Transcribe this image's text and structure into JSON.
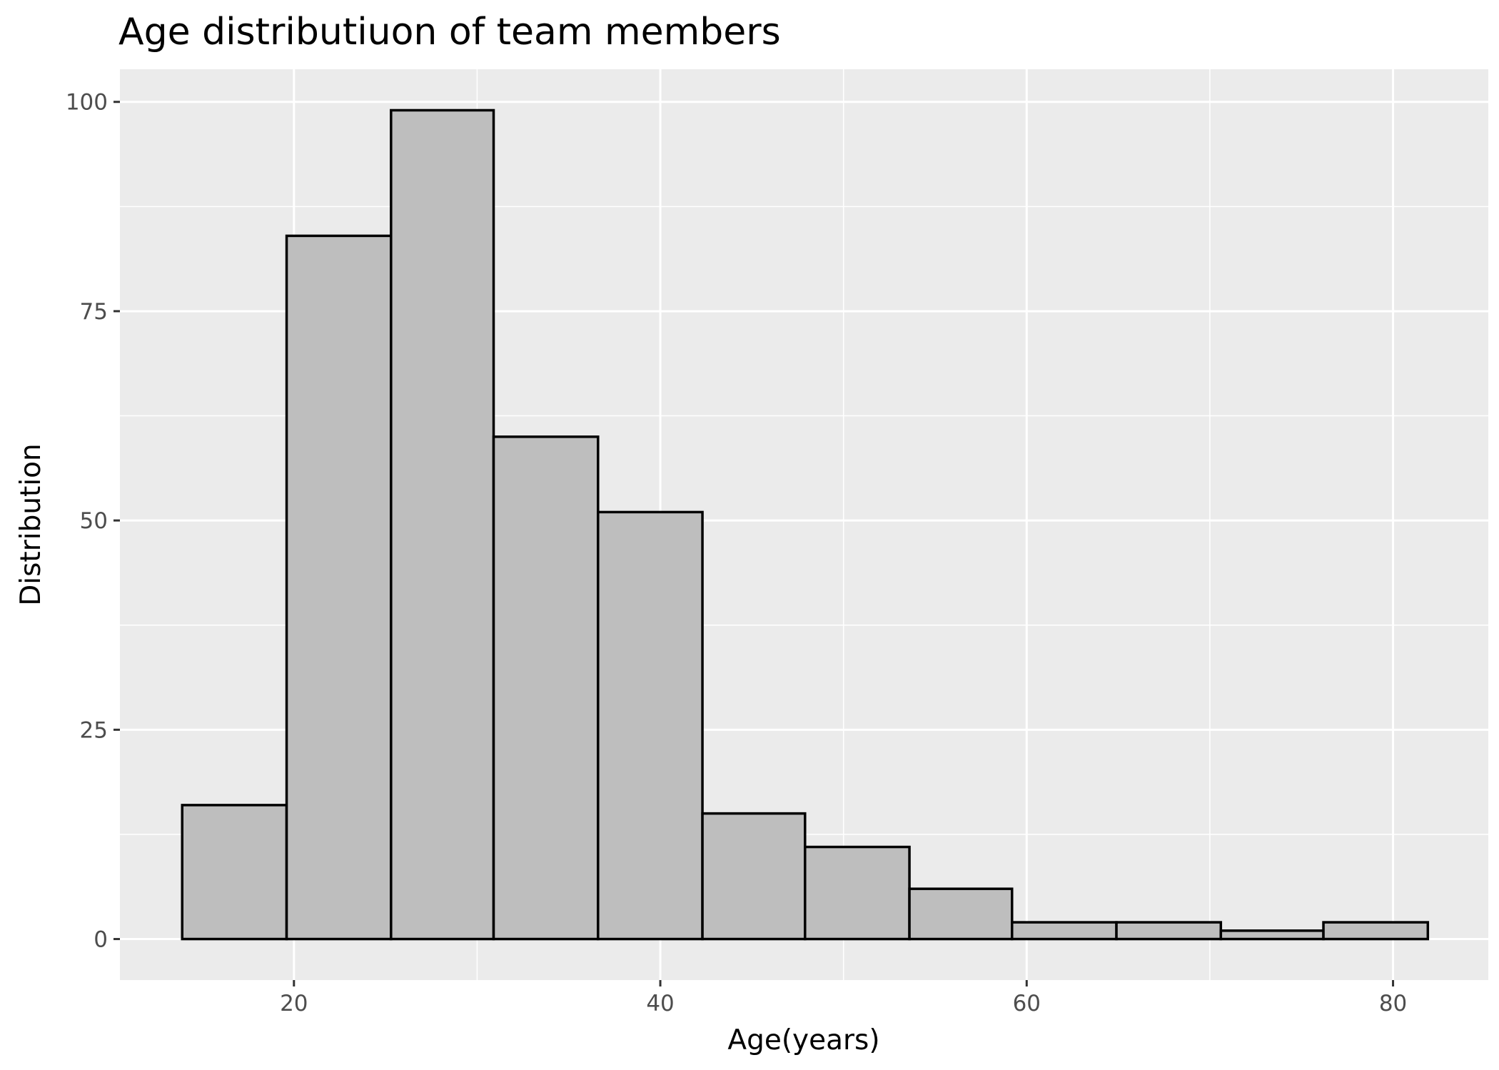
{
  "chart_data": {
    "type": "bar",
    "title": "Age distributiuon of team members",
    "xlabel": "Age(years)",
    "ylabel": "Distribution",
    "xlim": [
      10.5,
      85.2
    ],
    "ylim": [
      -4.9,
      103.9
    ],
    "x_ticks": [
      20,
      40,
      60,
      80
    ],
    "y_ticks": [
      0,
      25,
      50,
      75,
      100
    ],
    "bins": [
      {
        "start": 13.9,
        "end": 19.6,
        "count": 16
      },
      {
        "start": 19.6,
        "end": 25.3,
        "count": 84
      },
      {
        "start": 25.3,
        "end": 30.9,
        "count": 99
      },
      {
        "start": 30.9,
        "end": 36.6,
        "count": 60
      },
      {
        "start": 36.6,
        "end": 42.3,
        "count": 51
      },
      {
        "start": 42.3,
        "end": 47.9,
        "count": 15
      },
      {
        "start": 47.9,
        "end": 53.6,
        "count": 11
      },
      {
        "start": 53.6,
        "end": 59.2,
        "count": 6
      },
      {
        "start": 59.2,
        "end": 64.9,
        "count": 2
      },
      {
        "start": 64.9,
        "end": 70.6,
        "count": 2
      },
      {
        "start": 70.6,
        "end": 76.2,
        "count": 1
      },
      {
        "start": 76.2,
        "end": 81.9,
        "count": 2
      }
    ],
    "grid": true,
    "legend": "none",
    "colors": {
      "panel_background": "#ebebeb",
      "grid_line": "#ffffff",
      "bar_fill": "#bebebe",
      "bar_outline": "#000000",
      "tick_label": "#4d4d4d",
      "axis_tick": "#333333"
    }
  }
}
